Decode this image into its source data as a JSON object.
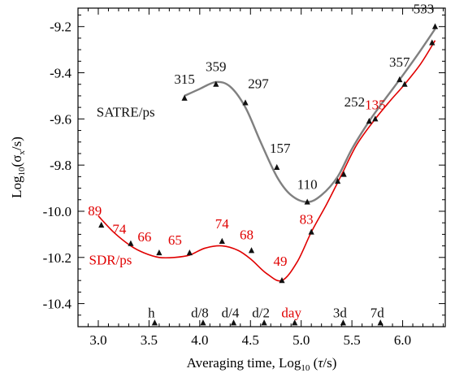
{
  "chart_data": {
    "type": "line",
    "xlabel_parts": [
      "Averaging time, Log",
      "10",
      " (",
      "τ",
      "/s)"
    ],
    "ylabel_parts": [
      "Log",
      "10",
      "(σ",
      "x",
      "/s)"
    ],
    "xlim": [
      2.8,
      6.42
    ],
    "ylim": [
      -10.5,
      -9.12
    ],
    "xticks": [
      3.0,
      3.5,
      4.0,
      4.5,
      5.0,
      5.5,
      6.0
    ],
    "xtick_labels": [
      "3.0",
      "3.5",
      "4.0",
      "4.5",
      "5.0",
      "5.5",
      "6.0"
    ],
    "yticks": [
      -9.2,
      -9.4,
      -9.6,
      -9.8,
      -10.0,
      -10.2,
      -10.4
    ],
    "ytick_labels": [
      "-9.2",
      "-9.4",
      "-9.6",
      "-9.8",
      "-10.0",
      "-10.2",
      "-10.4"
    ],
    "series": [
      {
        "name": "SATRE/ps",
        "color": "#111111",
        "fit_color": "#808080",
        "label_color": "#111111",
        "x": [
          3.85,
          4.16,
          4.45,
          4.76,
          5.06,
          5.36,
          5.42,
          5.67,
          5.97,
          6.32
        ],
        "y": [
          -9.51,
          -9.45,
          -9.53,
          -9.81,
          -9.96,
          -9.87,
          -9.84,
          -9.61,
          -9.43,
          -9.2
        ],
        "point_labels": [
          "315",
          "359",
          "297",
          "157",
          "110",
          "",
          "",
          "252",
          "357",
          "533"
        ]
      },
      {
        "name": "SDR/ps",
        "color": "#111111",
        "fit_color": "#e00000",
        "label_color": "#e00000",
        "x": [
          3.03,
          3.32,
          3.6,
          3.9,
          4.22,
          4.51,
          4.81,
          5.1,
          5.73,
          6.02,
          6.29
        ],
        "y": [
          -10.06,
          -10.14,
          -10.18,
          -10.18,
          -10.13,
          -10.17,
          -10.3,
          -10.09,
          -9.6,
          -9.45,
          -9.27
        ],
        "point_labels": [
          "89",
          "74",
          "66",
          "65",
          "74",
          "68",
          "49",
          "83",
          "135",
          "",
          ""
        ]
      }
    ],
    "fit_curves": [
      {
        "series": "SATRE/ps",
        "x": [
          3.85,
          4.0,
          4.16,
          4.3,
          4.45,
          4.6,
          4.76,
          4.9,
          5.06,
          5.2,
          5.36,
          5.5,
          5.67,
          5.8,
          5.97,
          6.15,
          6.32
        ],
        "y": [
          -9.5,
          -9.47,
          -9.44,
          -9.46,
          -9.55,
          -9.7,
          -9.85,
          -9.93,
          -9.96,
          -9.93,
          -9.85,
          -9.73,
          -9.61,
          -9.53,
          -9.43,
          -9.32,
          -9.21
        ]
      },
      {
        "series": "SDR/ps",
        "x": [
          3.0,
          3.15,
          3.32,
          3.45,
          3.6,
          3.75,
          3.9,
          4.05,
          4.22,
          4.38,
          4.51,
          4.66,
          4.81,
          4.96,
          5.1,
          5.25,
          5.4,
          5.55,
          5.73,
          5.88,
          6.02,
          6.18,
          6.32
        ],
        "y": [
          -10.02,
          -10.09,
          -10.15,
          -10.18,
          -10.2,
          -10.2,
          -10.19,
          -10.16,
          -10.15,
          -10.17,
          -10.21,
          -10.27,
          -10.3,
          -10.22,
          -10.09,
          -9.97,
          -9.84,
          -9.71,
          -9.6,
          -9.52,
          -9.45,
          -9.36,
          -9.26
        ]
      }
    ],
    "annotations": [
      {
        "text": "SATRE/ps",
        "color": "#111111",
        "x": 3.27,
        "y": -9.59
      },
      {
        "text": "SDR/ps",
        "color": "#e00000",
        "x": 3.12,
        "y": -10.23
      }
    ],
    "time_markers": {
      "y": -10.48,
      "items": [
        {
          "label": "h",
          "x": 3.556,
          "color": "#111111"
        },
        {
          "label": "d/8",
          "x": 4.033,
          "color": "#111111"
        },
        {
          "label": "d/4",
          "x": 4.334,
          "color": "#111111"
        },
        {
          "label": "d/2",
          "x": 4.635,
          "color": "#111111"
        },
        {
          "label": "day",
          "x": 4.936,
          "color": "#e00000"
        },
        {
          "label": "3d",
          "x": 5.414,
          "color": "#111111"
        },
        {
          "label": "7d",
          "x": 5.781,
          "color": "#111111"
        }
      ]
    },
    "grid": false,
    "legend": "none"
  }
}
